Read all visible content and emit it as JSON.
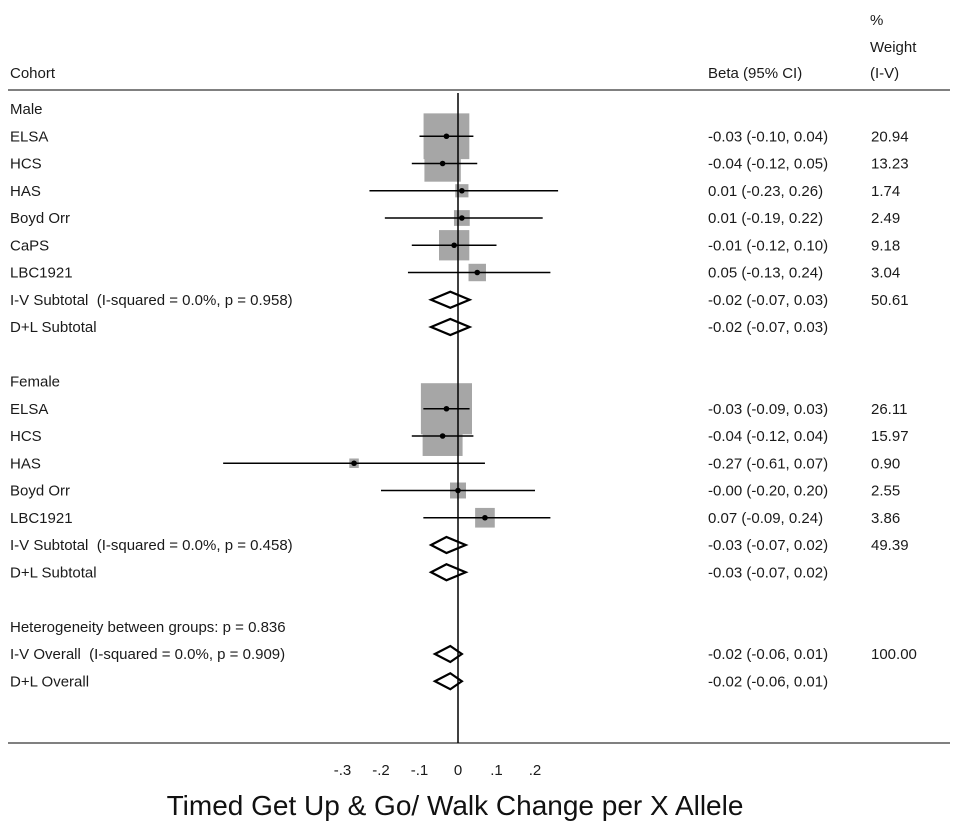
{
  "chart_data": {
    "type": "forest",
    "title": "",
    "xlabel": "Timed Get Up & Go/ Walk Change per X Allele",
    "x_ticks": [
      -0.3,
      -0.2,
      -0.1,
      0,
      0.1,
      0.2
    ],
    "x_tick_labels": [
      "-.3",
      "-.2",
      "-.1",
      "0",
      ".1",
      ".2"
    ],
    "null_value": 0,
    "colors": {
      "box": "#a6a6a6",
      "line": "#000000",
      "text": "#1a1a1a"
    },
    "headers": {
      "cohort": "Cohort",
      "beta": "Beta (95% CI)",
      "weight": [
        "%",
        "Weight",
        "(I-V)"
      ]
    },
    "rows": [
      {
        "kind": "group",
        "label": "Male"
      },
      {
        "kind": "study",
        "label": "ELSA",
        "beta": -0.03,
        "lo": -0.1,
        "hi": 0.04,
        "ci_text": "-0.03 (-0.10, 0.04)",
        "weight": 20.94,
        "weight_text": "20.94"
      },
      {
        "kind": "study",
        "label": "HCS",
        "beta": -0.04,
        "lo": -0.12,
        "hi": 0.05,
        "ci_text": "-0.04 (-0.12, 0.05)",
        "weight": 13.23,
        "weight_text": "13.23"
      },
      {
        "kind": "study",
        "label": "HAS",
        "beta": 0.01,
        "lo": -0.23,
        "hi": 0.26,
        "ci_text": "0.01 (-0.23, 0.26)",
        "weight": 1.74,
        "weight_text": "1.74"
      },
      {
        "kind": "study",
        "label": "Boyd Orr",
        "beta": 0.01,
        "lo": -0.19,
        "hi": 0.22,
        "ci_text": "0.01 (-0.19, 0.22)",
        "weight": 2.49,
        "weight_text": "2.49"
      },
      {
        "kind": "study",
        "label": "CaPS",
        "beta": -0.01,
        "lo": -0.12,
        "hi": 0.1,
        "ci_text": "-0.01 (-0.12, 0.10)",
        "weight": 9.18,
        "weight_text": "9.18"
      },
      {
        "kind": "study",
        "label": "LBC1921",
        "beta": 0.05,
        "lo": -0.13,
        "hi": 0.24,
        "ci_text": "0.05 (-0.13, 0.24)",
        "weight": 3.04,
        "weight_text": "3.04"
      },
      {
        "kind": "summary",
        "label": "I-V Subtotal  (I-squared = 0.0%, p = 0.958)",
        "beta": -0.02,
        "lo": -0.07,
        "hi": 0.03,
        "ci_text": "-0.02 (-0.07, 0.03)",
        "weight": 50.61,
        "weight_text": "50.61"
      },
      {
        "kind": "summary",
        "label": "D+L Subtotal",
        "beta": -0.02,
        "lo": -0.07,
        "hi": 0.03,
        "ci_text": "-0.02 (-0.07, 0.03)",
        "weight": null,
        "weight_text": ""
      },
      {
        "kind": "blank",
        "label": ""
      },
      {
        "kind": "group",
        "label": "Female"
      },
      {
        "kind": "study",
        "label": "ELSA",
        "beta": -0.03,
        "lo": -0.09,
        "hi": 0.03,
        "ci_text": "-0.03 (-0.09, 0.03)",
        "weight": 26.11,
        "weight_text": "26.11"
      },
      {
        "kind": "study",
        "label": "HCS",
        "beta": -0.04,
        "lo": -0.12,
        "hi": 0.04,
        "ci_text": "-0.04 (-0.12, 0.04)",
        "weight": 15.97,
        "weight_text": "15.97"
      },
      {
        "kind": "study",
        "label": "HAS",
        "beta": -0.27,
        "lo": -0.61,
        "hi": 0.07,
        "ci_text": "-0.27 (-0.61, 0.07)",
        "weight": 0.9,
        "weight_text": "0.90"
      },
      {
        "kind": "study",
        "label": "Boyd Orr",
        "beta": -0.0,
        "lo": -0.2,
        "hi": 0.2,
        "ci_text": "-0.00 (-0.20, 0.20)",
        "weight": 2.55,
        "weight_text": "2.55"
      },
      {
        "kind": "study",
        "label": "LBC1921",
        "beta": 0.07,
        "lo": -0.09,
        "hi": 0.24,
        "ci_text": "0.07 (-0.09, 0.24)",
        "weight": 3.86,
        "weight_text": "3.86"
      },
      {
        "kind": "summary",
        "label": "I-V Subtotal  (I-squared = 0.0%, p = 0.458)",
        "beta": -0.03,
        "lo": -0.07,
        "hi": 0.02,
        "ci_text": "-0.03 (-0.07, 0.02)",
        "weight": 49.39,
        "weight_text": "49.39"
      },
      {
        "kind": "summary",
        "label": "D+L Subtotal",
        "beta": -0.03,
        "lo": -0.07,
        "hi": 0.02,
        "ci_text": "-0.03 (-0.07, 0.02)",
        "weight": null,
        "weight_text": ""
      },
      {
        "kind": "blank",
        "label": ""
      },
      {
        "kind": "note",
        "label": "Heterogeneity between groups: p = 0.836"
      },
      {
        "kind": "summary",
        "label": "I-V Overall  (I-squared = 0.0%, p = 0.909)",
        "beta": -0.02,
        "lo": -0.06,
        "hi": 0.01,
        "ci_text": "-0.02 (-0.06, 0.01)",
        "weight": 100.0,
        "weight_text": "100.00"
      },
      {
        "kind": "summary",
        "label": "D+L Overall",
        "beta": -0.02,
        "lo": -0.06,
        "hi": 0.01,
        "ci_text": "-0.02 (-0.06, 0.01)",
        "weight": null,
        "weight_text": ""
      }
    ]
  }
}
